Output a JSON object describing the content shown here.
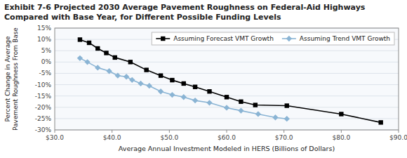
{
  "chart_data": {
    "type": "line",
    "title": "Exhibit 7-6 Projected 2030 Average Pavement Roughness on Federal-Aid Highways Compared with Base Year, for Different Possible Funding Levels",
    "x_label": "Average Annual Investment Modeled in HERS (Billions of Dollars)",
    "y_label": "Percent Change in Average\nPavement Roughness From Base",
    "series": [
      {
        "name": "Assuming Forecast VMT Growth",
        "color": "#000000",
        "marker": "square",
        "x": [
          34.4,
          36.0,
          37.5,
          39.0,
          40.5,
          43.2,
          46.0,
          48.5,
          50.5,
          52.5,
          54.5,
          57.0,
          60.0,
          62.5,
          65.0,
          70.5,
          80.0,
          86.9
        ],
        "values": [
          9.9,
          8.5,
          6.0,
          4.0,
          2.0,
          0.0,
          -3.5,
          -6.0,
          -8.0,
          -9.5,
          -11.0,
          -13.0,
          -15.5,
          -17.5,
          -19.0,
          -19.3,
          -23.0,
          -26.7
        ]
      },
      {
        "name": "Assuming Trend VMT Growth",
        "color": "#8ab4d4",
        "marker": "diamond",
        "x": [
          34.4,
          35.7,
          37.5,
          39.5,
          41.0,
          42.5,
          43.5,
          45.0,
          46.5,
          48.5,
          50.5,
          52.5,
          54.5,
          57.0,
          60.0,
          62.5,
          65.5,
          68.5,
          70.5
        ],
        "values": [
          1.7,
          0.0,
          -2.5,
          -4.0,
          -6.0,
          -6.5,
          -7.9,
          -9.5,
          -10.5,
          -13.0,
          -14.5,
          -15.5,
          -17.0,
          -18.0,
          -20.2,
          -21.5,
          -23.0,
          -24.5,
          -25.1
        ]
      }
    ],
    "xlim": [
      30.0,
      90.0
    ],
    "ylim": [
      -30,
      15
    ],
    "xticks": [
      {
        "value": 30.0,
        "label": "$30.0"
      },
      {
        "value": 40.0,
        "label": "$40.0"
      },
      {
        "value": 50.0,
        "label": "$50.0"
      },
      {
        "value": 60.0,
        "label": "$60.0"
      },
      {
        "value": 70.0,
        "label": "$70.0"
      },
      {
        "value": 80.0,
        "label": "$80.0"
      },
      {
        "value": 90.0,
        "label": "$90.0"
      }
    ],
    "yticks": [
      {
        "value": -30,
        "label": "-30%"
      },
      {
        "value": -25,
        "label": "-25%"
      },
      {
        "value": -20,
        "label": "-20%"
      },
      {
        "value": -15,
        "label": "-15%"
      },
      {
        "value": -10,
        "label": "-10%"
      },
      {
        "value": -5,
        "label": "-5%"
      },
      {
        "value": 0,
        "label": "0%"
      },
      {
        "value": 5,
        "label": "5%"
      },
      {
        "value": 10,
        "label": "10%"
      },
      {
        "value": 15,
        "label": "15%"
      }
    ],
    "grid": true,
    "legend": "upper right"
  }
}
